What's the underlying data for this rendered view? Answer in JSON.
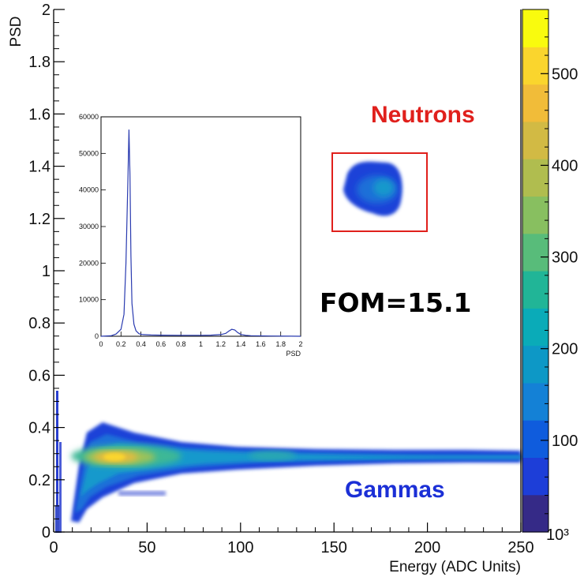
{
  "chart_data": [
    {
      "type": "heatmap",
      "xlabel": "Energy (ADC Units)",
      "ylabel": "PSD",
      "xlim": [
        0,
        250
      ],
      "ylim": [
        0,
        2
      ],
      "x_ticks": [
        0,
        50,
        100,
        150,
        200,
        250
      ],
      "x_tick_labels": [
        "0",
        "50",
        "100",
        "150",
        "200",
        "250"
      ],
      "y_ticks": [
        0,
        0.2,
        0.4,
        0.6,
        0.8,
        1,
        1.2,
        1.4,
        1.6,
        1.8,
        2
      ],
      "y_tick_labels": [
        "0",
        "0.2",
        "0.4",
        "0.6",
        "0.8",
        "1",
        "1.2",
        "1.4",
        "1.6",
        "1.8",
        "2"
      ],
      "colorbar": {
        "range": [
          0,
          570
        ],
        "ticks": [
          100,
          200,
          300,
          400,
          500
        ],
        "tick_labels": [
          "100",
          "200",
          "300",
          "400",
          "500"
        ],
        "corner_label": "10³",
        "colors": [
          "#352a87",
          "#1d3ed8",
          "#0f5cdd",
          "#1481d6",
          "#0d98c6",
          "#0aabb8",
          "#21b597",
          "#58bc7a",
          "#88bf60",
          "#b0bd4f",
          "#d2ba44",
          "#f1bc39",
          "#fad52d",
          "#f9fb0e"
        ]
      },
      "regions": [
        {
          "name": "Gammas",
          "x_range": [
            10,
            250
          ],
          "psd_center": 0.28,
          "peak_x": 35,
          "peak_density": 560
        },
        {
          "name": "Neutrons",
          "x_range": [
            420,
            510
          ],
          "psd_center": 1.3,
          "peak_density": 140
        }
      ],
      "annotations": {
        "neutrons": "Neutrons",
        "gammas": "Gammas",
        "fom": "FOM=15.1"
      }
    },
    {
      "type": "line",
      "xlabel": "PSD",
      "ylabel": "",
      "xlim": [
        0,
        2
      ],
      "ylim": [
        0,
        60000
      ],
      "x_ticks": [
        0,
        0.2,
        0.4,
        0.6,
        0.8,
        1,
        1.2,
        1.4,
        1.6,
        1.8,
        2
      ],
      "x_tick_labels": [
        "0",
        "0.2",
        "0.4",
        "0.6",
        "0.8",
        "1",
        "1.2",
        "1.4",
        "1.6",
        "1.8",
        "2"
      ],
      "y_ticks": [
        0,
        10000,
        20000,
        30000,
        40000,
        50000,
        60000
      ],
      "y_tick_labels": [
        "0",
        "10000",
        "20000",
        "30000",
        "40000",
        "50000",
        "60000"
      ],
      "series": [
        {
          "color": "#2a3bb0",
          "x": [
            0,
            0.1,
            0.15,
            0.2,
            0.23,
            0.25,
            0.27,
            0.28,
            0.29,
            0.3,
            0.31,
            0.33,
            0.35,
            0.38,
            0.42,
            0.5,
            0.6,
            0.8,
            1.0,
            1.1,
            1.2,
            1.25,
            1.28,
            1.31,
            1.34,
            1.37,
            1.4,
            1.45,
            1.5,
            1.7,
            1.9,
            2.0
          ],
          "y": [
            0,
            120,
            600,
            1900,
            6000,
            20000,
            44000,
            56500,
            44000,
            22000,
            9000,
            3300,
            1500,
            700,
            450,
            350,
            300,
            250,
            250,
            300,
            450,
            800,
            1400,
            1900,
            1700,
            1000,
            500,
            250,
            150,
            60,
            20,
            0
          ]
        }
      ]
    }
  ]
}
